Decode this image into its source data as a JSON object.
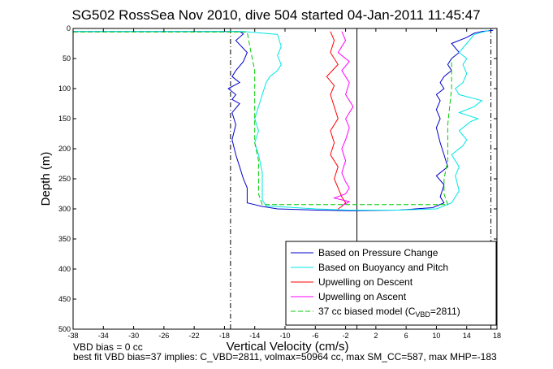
{
  "chart_data": {
    "type": "line",
    "title": "SG502 RossSea Nov 2010, dive 504 started 04-Jan-2011 11:45:47",
    "xlabel": "Vertical Velocity (cm/s)",
    "ylabel": "Depth (m)",
    "xlim": [
      -38,
      18
    ],
    "ylim": [
      0,
      500
    ],
    "y_reversed": true,
    "grid": false,
    "x_ticks": [
      -38,
      -34,
      -30,
      -26,
      -22,
      -18,
      -14,
      -10,
      -6,
      -2,
      2,
      6,
      10,
      14,
      18
    ],
    "y_ticks": [
      0,
      50,
      100,
      150,
      200,
      250,
      300,
      350,
      400,
      450,
      500
    ],
    "legend_position": "bottom-right",
    "reference_lines": [
      {
        "x": -17.2,
        "style": "dash-dot",
        "color": "#000000"
      },
      {
        "x": -0.5,
        "style": "solid",
        "color": "#000000"
      },
      {
        "x": 17.2,
        "style": "dash-dot",
        "color": "#000000"
      }
    ],
    "series": [
      {
        "name": "Based on Pressure Change",
        "color": "#0000cc",
        "style": "solid",
        "x": [
          -38,
          -16,
          -15.5,
          -16.5,
          -15,
          -15.5,
          -16.5,
          -17,
          -16,
          -17.5,
          -16.5,
          -17,
          -16,
          -17,
          -16.5,
          -17,
          -16.5,
          -16,
          -15.5,
          -15,
          -15,
          -15,
          -15,
          -14,
          -13,
          -11,
          -6,
          -1.5,
          5,
          9.5,
          11,
          10.5,
          11,
          10,
          11.5,
          11,
          10.5,
          10,
          10.5,
          10,
          10.5,
          10,
          11,
          10.5,
          11,
          12,
          11.5,
          12,
          13,
          12,
          14,
          15,
          16,
          17.5
        ],
        "y": [
          5,
          5,
          9,
          20,
          40,
          55,
          70,
          80,
          90,
          100,
          110,
          118,
          125,
          140,
          160,
          185,
          210,
          230,
          250,
          265,
          275,
          285,
          290,
          293,
          296,
          300,
          302,
          303,
          302,
          298,
          290,
          280,
          260,
          245,
          230,
          210,
          190,
          165,
          150,
          135,
          120,
          110,
          100,
          90,
          80,
          70,
          60,
          50,
          40,
          25,
          15,
          8,
          5,
          3
        ]
      },
      {
        "name": "Based on Buoyancy and Pitch",
        "color": "#00e6e6",
        "style": "solid",
        "x": [
          -38,
          -15.5,
          -11,
          -10.5,
          -11,
          -10.5,
          -11,
          -12,
          -12.5,
          -13,
          -13.5,
          -14,
          -13.5,
          -14,
          -13.5,
          -13,
          -13,
          -13,
          -12.5,
          -6,
          -1.5,
          5,
          10,
          12,
          13,
          12.5,
          13,
          12,
          13.5,
          14,
          13,
          14.5,
          15.5,
          13,
          15,
          16,
          13,
          12.5,
          13.5,
          14,
          13.5,
          14,
          13,
          14,
          15,
          17
        ],
        "y": [
          5,
          5,
          10,
          30,
          45,
          60,
          70,
          80,
          90,
          110,
          130,
          150,
          170,
          190,
          210,
          240,
          260,
          285,
          295,
          300,
          302,
          302,
          300,
          290,
          270,
          245,
          230,
          210,
          195,
          185,
          170,
          155,
          150,
          140,
          130,
          120,
          110,
          100,
          90,
          75,
          60,
          50,
          40,
          25,
          10,
          3
        ]
      },
      {
        "name": "Upwelling on Descent",
        "color": "#ff0000",
        "style": "solid",
        "x": [
          -4,
          -3.5,
          -4,
          -3,
          -4.5,
          -3.5,
          -4,
          -3.5,
          -3,
          -4,
          -3.5,
          -4,
          -3,
          -3.5,
          -3,
          -2.5,
          -2,
          -2.5,
          -3
        ],
        "y": [
          5,
          20,
          40,
          60,
          80,
          95,
          110,
          130,
          150,
          170,
          190,
          210,
          230,
          250,
          265,
          280,
          290,
          296,
          300
        ]
      },
      {
        "name": "Upwelling on Ascent",
        "color": "#ff00ff",
        "style": "solid",
        "x": [
          -2.5,
          -2,
          -3,
          -1.5,
          -2.5,
          -1.5,
          -2,
          -1,
          -2,
          -1.5,
          -2,
          -2.5,
          -2,
          -2.5,
          -2,
          -1.5,
          -2,
          -3.5,
          -1.5,
          -2.5
        ],
        "y": [
          5,
          20,
          40,
          55,
          70,
          90,
          110,
          130,
          150,
          165,
          185,
          200,
          220,
          240,
          255,
          265,
          275,
          282,
          288,
          295
        ]
      },
      {
        "name": "37 cc biased model (C_VBD=2811)",
        "color": "#00cc00",
        "style": "dashed",
        "x": [
          -38,
          -15,
          -14.5,
          -14,
          -14,
          -14,
          -14,
          -14,
          -13.5,
          -13.5,
          -13.5,
          -13,
          11.5,
          11,
          11,
          11.5,
          11.5,
          12,
          12
        ],
        "y": [
          6,
          6,
          40,
          70,
          100,
          130,
          160,
          190,
          220,
          250,
          275,
          293,
          293,
          275,
          250,
          220,
          160,
          100,
          50
        ]
      }
    ],
    "annotations": [
      "VBD bias = 0 cc",
      "best fit VBD bias=37 implies: C_VBD=2811, volmax=50964 cc, max SM_CC=587, max MHP=-183"
    ]
  }
}
